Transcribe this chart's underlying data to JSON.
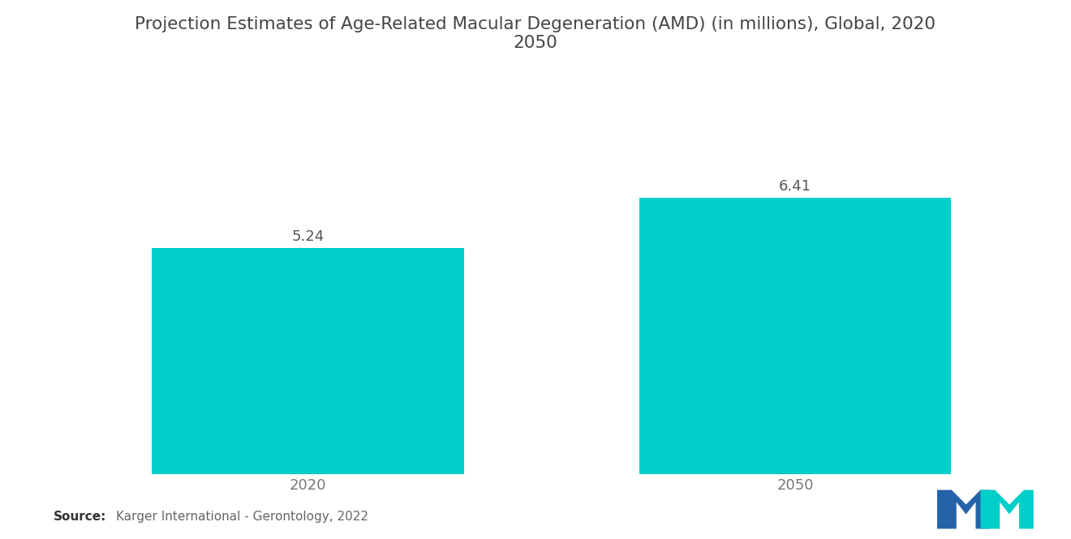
{
  "title": "Projection Estimates of Age-Related Macular Degeneration (AMD) (in millions), Global, 2020\n2050",
  "categories": [
    "2020",
    "2050"
  ],
  "values": [
    5.24,
    6.41
  ],
  "bar_color": "#00CEC9",
  "value_labels": [
    "5.24",
    "6.41"
  ],
  "source_bold": "Source:",
  "source_text": "Karger International - Gerontology, 2022",
  "background_color": "#ffffff",
  "title_fontsize": 15.5,
  "tick_fontsize": 13,
  "value_fontsize": 13,
  "source_fontsize": 11,
  "bar_width": 0.32,
  "ylim": [
    0,
    9.5
  ],
  "x_positions": [
    0.25,
    0.75
  ],
  "logo_blue": "#2563a8",
  "logo_teal": "#00CEC9"
}
